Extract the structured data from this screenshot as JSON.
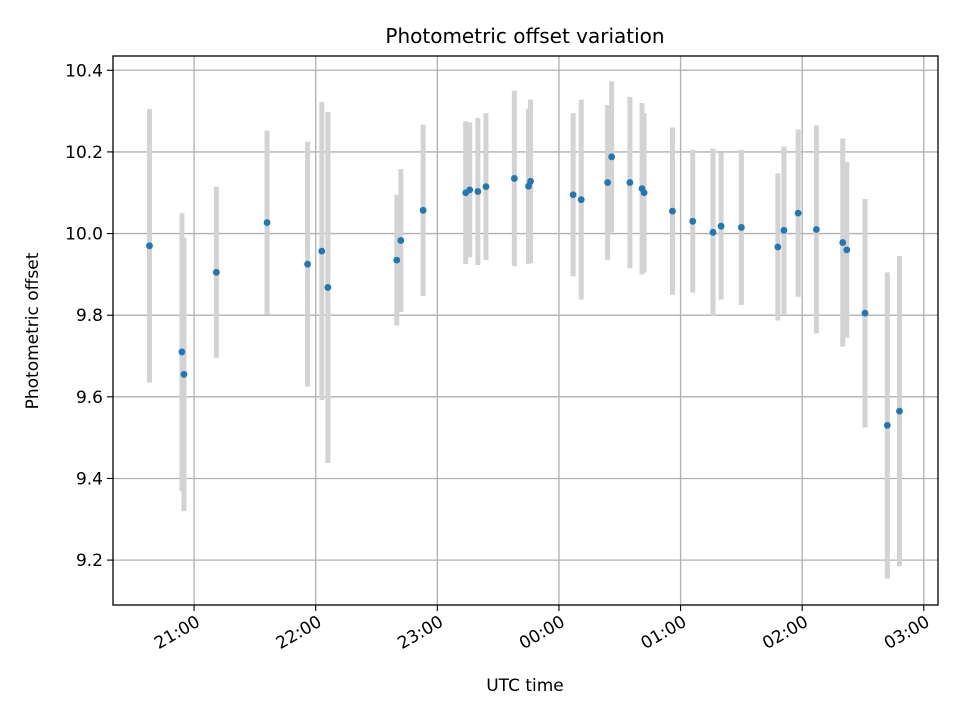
{
  "chart_data": {
    "type": "scatter",
    "title": "Photometric offset variation",
    "xlabel": "UTC time",
    "ylabel": "Photometric offset",
    "x_tick_labels": [
      "21:00",
      "22:00",
      "23:00",
      "00:00",
      "01:00",
      "02:00",
      "03:00"
    ],
    "y_tick_labels": [
      "9.2",
      "9.4",
      "9.6",
      "9.8",
      "10.0",
      "10.2",
      "10.4"
    ],
    "ylim": [
      9.09,
      10.435
    ],
    "xlim": [
      "20:20",
      "03:07"
    ],
    "grid": true,
    "marker_color": "#1f77b4",
    "errorbar_color": "#d3d3d3",
    "points": [
      {
        "time": "20:38",
        "y": 9.97,
        "err": 0.335
      },
      {
        "time": "20:54",
        "y": 9.71,
        "err": 0.34
      },
      {
        "time": "20:55",
        "y": 9.655,
        "err": 0.335
      },
      {
        "time": "21:11",
        "y": 9.905,
        "err": 0.21
      },
      {
        "time": "21:36",
        "y": 10.027,
        "err": 0.225
      },
      {
        "time": "21:56",
        "y": 9.925,
        "err": 0.3
      },
      {
        "time": "22:03",
        "y": 9.957,
        "err": 0.365
      },
      {
        "time": "22:06",
        "y": 9.868,
        "err": 0.43
      },
      {
        "time": "22:40",
        "y": 9.935,
        "err": 0.16
      },
      {
        "time": "22:42",
        "y": 9.983,
        "err": 0.175
      },
      {
        "time": "22:53",
        "y": 10.057,
        "err": 0.21
      },
      {
        "time": "23:14",
        "y": 10.1,
        "err": 0.175
      },
      {
        "time": "23:16",
        "y": 10.107,
        "err": 0.165
      },
      {
        "time": "23:20",
        "y": 10.103,
        "err": 0.18
      },
      {
        "time": "23:24",
        "y": 10.115,
        "err": 0.18
      },
      {
        "time": "23:38",
        "y": 10.135,
        "err": 0.215
      },
      {
        "time": "23:45",
        "y": 10.116,
        "err": 0.19
      },
      {
        "time": "23:46",
        "y": 10.128,
        "err": 0.2
      },
      {
        "time": "00:07",
        "y": 10.095,
        "err": 0.2
      },
      {
        "time": "00:11",
        "y": 10.083,
        "err": 0.245
      },
      {
        "time": "00:24",
        "y": 10.125,
        "err": 0.19
      },
      {
        "time": "00:26",
        "y": 10.188,
        "err": 0.185
      },
      {
        "time": "00:35",
        "y": 10.125,
        "err": 0.21
      },
      {
        "time": "00:41",
        "y": 10.11,
        "err": 0.21
      },
      {
        "time": "00:42",
        "y": 10.1,
        "err": 0.195
      },
      {
        "time": "00:56",
        "y": 10.055,
        "err": 0.205
      },
      {
        "time": "01:06",
        "y": 10.03,
        "err": 0.175
      },
      {
        "time": "01:16",
        "y": 10.003,
        "err": 0.205
      },
      {
        "time": "01:20",
        "y": 10.018,
        "err": 0.18
      },
      {
        "time": "01:30",
        "y": 10.015,
        "err": 0.19
      },
      {
        "time": "01:48",
        "y": 9.967,
        "err": 0.18
      },
      {
        "time": "01:51",
        "y": 10.008,
        "err": 0.205
      },
      {
        "time": "01:58",
        "y": 10.05,
        "err": 0.205
      },
      {
        "time": "02:07",
        "y": 10.01,
        "err": 0.255
      },
      {
        "time": "02:20",
        "y": 9.978,
        "err": 0.255
      },
      {
        "time": "02:22",
        "y": 9.96,
        "err": 0.215
      },
      {
        "time": "02:31",
        "y": 9.805,
        "err": 0.28
      },
      {
        "time": "02:42",
        "y": 9.53,
        "err": 0.375
      },
      {
        "time": "02:48",
        "y": 9.565,
        "err": 0.38
      }
    ]
  }
}
